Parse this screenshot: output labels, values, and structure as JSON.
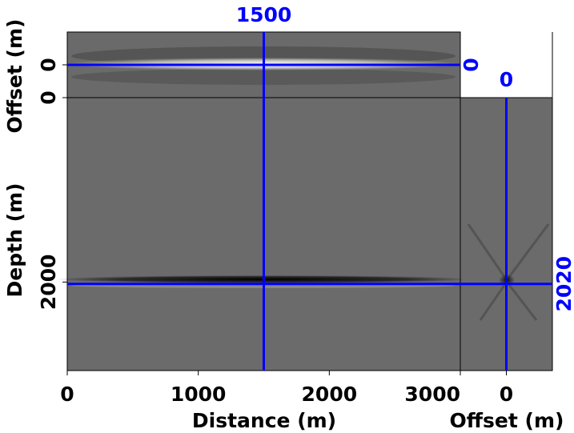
{
  "chart_data": {
    "type": "cube",
    "x_label": "Distance (m)",
    "y_label": "Depth (m)",
    "offset_label": "Offset (m)",
    "xlim": [
      0,
      3000
    ],
    "xticks": [
      0,
      1000,
      2000,
      3000
    ],
    "ylim": [
      0,
      2960
    ],
    "yticks": [
      0,
      2000
    ],
    "offset_lim": [
      -500,
      500
    ],
    "offset_ticks": [
      0
    ],
    "crosshair": {
      "x": 1500,
      "y": 2020,
      "offset": 0
    },
    "crosshair_color": "#0000ff"
  }
}
